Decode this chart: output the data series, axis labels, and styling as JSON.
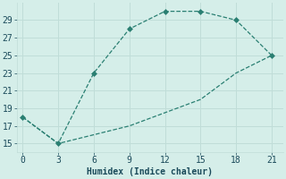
{
  "xlabel": "Humidex (Indice chaleur)",
  "line1_x": [
    0,
    3,
    6,
    9,
    12,
    15,
    18,
    21
  ],
  "line1_y": [
    18,
    15,
    23,
    28,
    30,
    30,
    29,
    25
  ],
  "line2_x": [
    0,
    3,
    6,
    9,
    12,
    15,
    18,
    21
  ],
  "line2_y": [
    18,
    15,
    16,
    17,
    18.5,
    20,
    23,
    25
  ],
  "xlim": [
    -0.5,
    22
  ],
  "ylim": [
    14,
    31
  ],
  "xticks": [
    0,
    3,
    6,
    9,
    12,
    15,
    18,
    21
  ],
  "yticks": [
    15,
    17,
    19,
    21,
    23,
    25,
    27,
    29
  ],
  "line_color": "#2a7f72",
  "bg_color": "#d5eee9",
  "grid_color": "#c0ddd8",
  "marker": "D",
  "marker_size": 3,
  "font_color": "#1a4a5a",
  "font_size": 7
}
